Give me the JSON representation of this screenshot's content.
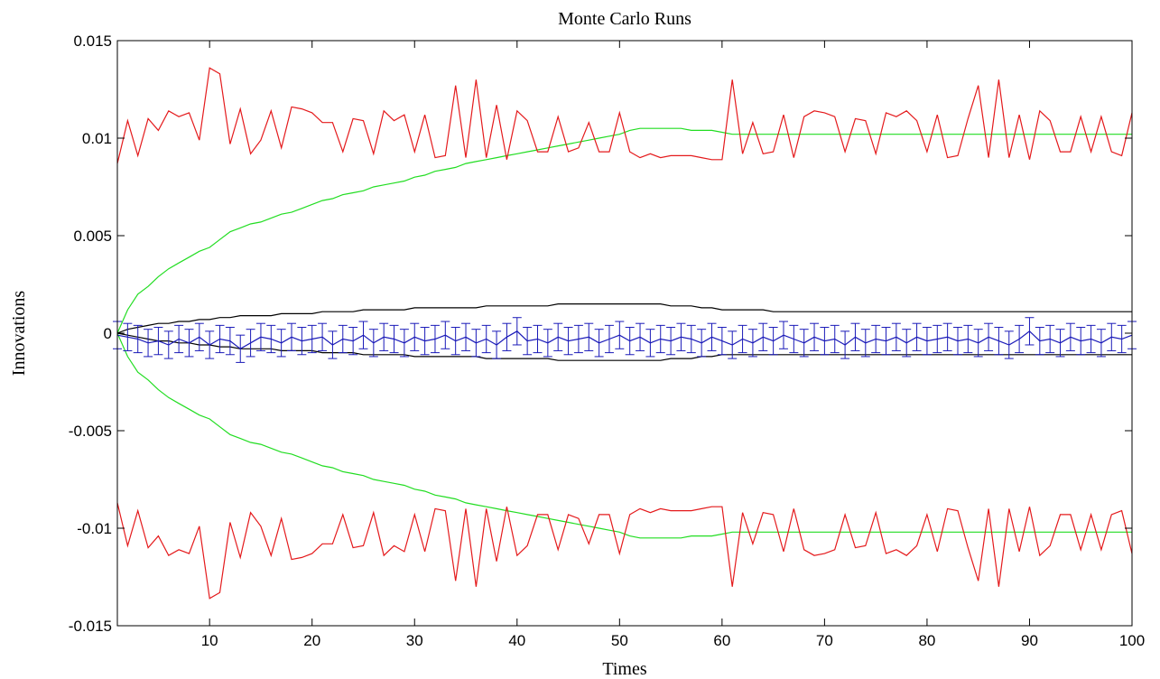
{
  "chart_data": {
    "type": "line",
    "title": "Monte Carlo Runs",
    "xlabel": "Times",
    "ylabel": "Innovations",
    "xlim": [
      1,
      100
    ],
    "ylim": [
      -0.015,
      0.015
    ],
    "xticks": [
      10,
      20,
      30,
      40,
      50,
      60,
      70,
      80,
      90,
      100
    ],
    "xtick_labels": [
      "10",
      "20",
      "30",
      "40",
      "50",
      "60",
      "70",
      "80",
      "90",
      "100"
    ],
    "yticks": [
      -0.015,
      -0.01,
      -0.005,
      0,
      0.005,
      0.01,
      0.015
    ],
    "ytick_labels": [
      "-0.015",
      "-0.01",
      "-0.005",
      "0",
      "0.005",
      "0.01",
      "0.015"
    ],
    "grid": false,
    "colors": {
      "red": "#e41a1c",
      "green": "#22dd22",
      "black": "#000000",
      "blue": "#1a1ab8"
    },
    "x": [
      1,
      2,
      3,
      4,
      5,
      6,
      7,
      8,
      9,
      10,
      11,
      12,
      13,
      14,
      15,
      16,
      17,
      18,
      19,
      20,
      21,
      22,
      23,
      24,
      25,
      26,
      27,
      28,
      29,
      30,
      31,
      32,
      33,
      34,
      35,
      36,
      37,
      38,
      39,
      40,
      41,
      42,
      43,
      44,
      45,
      46,
      47,
      48,
      49,
      50,
      51,
      52,
      53,
      54,
      55,
      56,
      57,
      58,
      59,
      60,
      61,
      62,
      63,
      64,
      65,
      66,
      67,
      68,
      69,
      70,
      71,
      72,
      73,
      74,
      75,
      76,
      77,
      78,
      79,
      80,
      81,
      82,
      83,
      84,
      85,
      86,
      87,
      88,
      89,
      90,
      91,
      92,
      93,
      94,
      95,
      96,
      97,
      98,
      99,
      100
    ],
    "red_upper": [
      0.0087,
      0.0109,
      0.0091,
      0.011,
      0.0104,
      0.0114,
      0.0111,
      0.0113,
      0.0099,
      0.0136,
      0.0133,
      0.0097,
      0.0115,
      0.0092,
      0.0099,
      0.0114,
      0.0095,
      0.0116,
      0.0115,
      0.0113,
      0.0108,
      0.0108,
      0.0093,
      0.011,
      0.0109,
      0.0092,
      0.0114,
      0.0109,
      0.0112,
      0.0093,
      0.0112,
      0.009,
      0.0091,
      0.0127,
      0.009,
      0.013,
      0.009,
      0.0117,
      0.0089,
      0.0114,
      0.0109,
      0.0093,
      0.0093,
      0.0111,
      0.0093,
      0.0095,
      0.0108,
      0.0093,
      0.0093,
      0.0113,
      0.0093,
      0.009,
      0.0092,
      0.009,
      0.0091,
      0.0091,
      0.0091,
      0.009,
      0.0089,
      0.0089,
      0.013,
      0.0092,
      0.0108,
      0.0092,
      0.0093,
      0.0112,
      0.009,
      0.0111,
      0.0114,
      0.0113,
      0.0111,
      0.0093,
      0.011,
      0.0109,
      0.0092,
      0.0113,
      0.0111,
      0.0114,
      0.0109,
      0.0093,
      0.0112,
      0.009,
      0.0091,
      0.011,
      0.0127,
      0.009,
      0.013,
      0.009,
      0.0112,
      0.0089,
      0.0114,
      0.0109,
      0.0093,
      0.0093,
      0.0111,
      0.0093,
      0.0111,
      0.0093,
      0.0091,
      0.0113
    ],
    "red_lower": [
      -0.0087,
      -0.0109,
      -0.0091,
      -0.011,
      -0.0104,
      -0.0114,
      -0.0111,
      -0.0113,
      -0.0099,
      -0.0136,
      -0.0133,
      -0.0097,
      -0.0115,
      -0.0092,
      -0.0099,
      -0.0114,
      -0.0095,
      -0.0116,
      -0.0115,
      -0.0113,
      -0.0108,
      -0.0108,
      -0.0093,
      -0.011,
      -0.0109,
      -0.0092,
      -0.0114,
      -0.0109,
      -0.0112,
      -0.0093,
      -0.0112,
      -0.009,
      -0.0091,
      -0.0127,
      -0.009,
      -0.013,
      -0.009,
      -0.0117,
      -0.0089,
      -0.0114,
      -0.0109,
      -0.0093,
      -0.0093,
      -0.0111,
      -0.0093,
      -0.0095,
      -0.0108,
      -0.0093,
      -0.0093,
      -0.0113,
      -0.0093,
      -0.009,
      -0.0092,
      -0.009,
      -0.0091,
      -0.0091,
      -0.0091,
      -0.009,
      -0.0089,
      -0.0089,
      -0.013,
      -0.0092,
      -0.0108,
      -0.0092,
      -0.0093,
      -0.0112,
      -0.009,
      -0.0111,
      -0.0114,
      -0.0113,
      -0.0111,
      -0.0093,
      -0.011,
      -0.0109,
      -0.0092,
      -0.0113,
      -0.0111,
      -0.0114,
      -0.0109,
      -0.0093,
      -0.0112,
      -0.009,
      -0.0091,
      -0.011,
      -0.0127,
      -0.009,
      -0.013,
      -0.009,
      -0.0112,
      -0.0089,
      -0.0114,
      -0.0109,
      -0.0093,
      -0.0093,
      -0.0111,
      -0.0093,
      -0.0111,
      -0.0093,
      -0.0091,
      -0.0113
    ],
    "green_upper": [
      0.0,
      0.0012,
      0.002,
      0.0024,
      0.0029,
      0.0033,
      0.0036,
      0.0039,
      0.0042,
      0.0044,
      0.0048,
      0.0052,
      0.0054,
      0.0056,
      0.0057,
      0.0059,
      0.0061,
      0.0062,
      0.0064,
      0.0066,
      0.0068,
      0.0069,
      0.0071,
      0.0072,
      0.0073,
      0.0075,
      0.0076,
      0.0077,
      0.0078,
      0.008,
      0.0081,
      0.0083,
      0.0084,
      0.0085,
      0.0087,
      0.0088,
      0.0089,
      0.009,
      0.0091,
      0.0092,
      0.0093,
      0.0094,
      0.0095,
      0.0096,
      0.0097,
      0.0098,
      0.0099,
      0.01,
      0.0101,
      0.0102,
      0.0104,
      0.0105,
      0.0105,
      0.0105,
      0.0105,
      0.0105,
      0.0104,
      0.0104,
      0.0104,
      0.0103,
      0.0102,
      0.0102,
      0.0102,
      0.0102,
      0.0102,
      0.0102,
      0.0102,
      0.0102,
      0.0102,
      0.0102,
      0.0102,
      0.0102,
      0.0102,
      0.0102,
      0.0102,
      0.0102,
      0.0102,
      0.0102,
      0.0102,
      0.0102,
      0.0102,
      0.0102,
      0.0102,
      0.0102,
      0.0102,
      0.0102,
      0.0102,
      0.0102,
      0.0102,
      0.0102,
      0.0102,
      0.0102,
      0.0102,
      0.0102,
      0.0102,
      0.0102,
      0.0102,
      0.0102,
      0.0102,
      0.0102
    ],
    "green_lower": [
      0.0,
      -0.0012,
      -0.002,
      -0.0024,
      -0.0029,
      -0.0033,
      -0.0036,
      -0.0039,
      -0.0042,
      -0.0044,
      -0.0048,
      -0.0052,
      -0.0054,
      -0.0056,
      -0.0057,
      -0.0059,
      -0.0061,
      -0.0062,
      -0.0064,
      -0.0066,
      -0.0068,
      -0.0069,
      -0.0071,
      -0.0072,
      -0.0073,
      -0.0075,
      -0.0076,
      -0.0077,
      -0.0078,
      -0.008,
      -0.0081,
      -0.0083,
      -0.0084,
      -0.0085,
      -0.0087,
      -0.0088,
      -0.0089,
      -0.009,
      -0.0091,
      -0.0092,
      -0.0093,
      -0.0094,
      -0.0095,
      -0.0096,
      -0.0097,
      -0.0098,
      -0.0099,
      -0.01,
      -0.0101,
      -0.0102,
      -0.0104,
      -0.0105,
      -0.0105,
      -0.0105,
      -0.0105,
      -0.0105,
      -0.0104,
      -0.0104,
      -0.0104,
      -0.0103,
      -0.0102,
      -0.0102,
      -0.0102,
      -0.0102,
      -0.0102,
      -0.0102,
      -0.0102,
      -0.0102,
      -0.0102,
      -0.0102,
      -0.0102,
      -0.0102,
      -0.0102,
      -0.0102,
      -0.0102,
      -0.0102,
      -0.0102,
      -0.0102,
      -0.0102,
      -0.0102,
      -0.0102,
      -0.0102,
      -0.0102,
      -0.0102,
      -0.0102,
      -0.0102,
      -0.0102,
      -0.0102,
      -0.0102,
      -0.0102,
      -0.0102,
      -0.0102,
      -0.0102,
      -0.0102,
      -0.0102,
      -0.0102,
      -0.0102,
      -0.0102,
      -0.0102,
      -0.0102
    ],
    "black_upper": [
      0.0,
      0.0002,
      0.0003,
      0.0004,
      0.0005,
      0.0005,
      0.0006,
      0.0006,
      0.0007,
      0.0007,
      0.0008,
      0.0008,
      0.0009,
      0.0009,
      0.0009,
      0.0009,
      0.001,
      0.001,
      0.001,
      0.001,
      0.0011,
      0.0011,
      0.0011,
      0.0011,
      0.0012,
      0.0012,
      0.0012,
      0.0012,
      0.0012,
      0.0013,
      0.0013,
      0.0013,
      0.0013,
      0.0013,
      0.0013,
      0.0013,
      0.0014,
      0.0014,
      0.0014,
      0.0014,
      0.0014,
      0.0014,
      0.0014,
      0.0015,
      0.0015,
      0.0015,
      0.0015,
      0.0015,
      0.0015,
      0.0015,
      0.0015,
      0.0015,
      0.0015,
      0.0015,
      0.0014,
      0.0014,
      0.0014,
      0.0013,
      0.0013,
      0.0012,
      0.0012,
      0.0012,
      0.0012,
      0.0012,
      0.0011,
      0.0011,
      0.0011,
      0.0011,
      0.0011,
      0.0011,
      0.0011,
      0.0011,
      0.0011,
      0.0011,
      0.0011,
      0.0011,
      0.0011,
      0.0011,
      0.0011,
      0.0011,
      0.0011,
      0.0011,
      0.0011,
      0.0011,
      0.0011,
      0.0011,
      0.0011,
      0.0011,
      0.0011,
      0.0011,
      0.0011,
      0.0011,
      0.0011,
      0.0011,
      0.0011,
      0.0011,
      0.0011,
      0.0011,
      0.0011,
      0.0011
    ],
    "black_lower": [
      0.0,
      -0.0001,
      -0.0002,
      -0.0003,
      -0.0004,
      -0.0004,
      -0.0005,
      -0.0005,
      -0.0006,
      -0.0006,
      -0.0007,
      -0.0007,
      -0.0008,
      -0.0008,
      -0.0008,
      -0.0008,
      -0.0009,
      -0.0009,
      -0.0009,
      -0.0009,
      -0.001,
      -0.001,
      -0.001,
      -0.001,
      -0.0011,
      -0.0011,
      -0.0011,
      -0.0011,
      -0.0011,
      -0.0012,
      -0.0012,
      -0.0012,
      -0.0012,
      -0.0012,
      -0.0012,
      -0.0012,
      -0.0013,
      -0.0013,
      -0.0013,
      -0.0013,
      -0.0013,
      -0.0013,
      -0.0013,
      -0.0014,
      -0.0014,
      -0.0014,
      -0.0014,
      -0.0014,
      -0.0014,
      -0.0014,
      -0.0014,
      -0.0014,
      -0.0014,
      -0.0014,
      -0.0013,
      -0.0013,
      -0.0013,
      -0.0012,
      -0.0012,
      -0.0011,
      -0.0011,
      -0.0011,
      -0.0011,
      -0.0011,
      -0.0011,
      -0.0011,
      -0.0011,
      -0.0011,
      -0.0011,
      -0.0011,
      -0.0011,
      -0.0011,
      -0.0011,
      -0.0011,
      -0.0011,
      -0.0011,
      -0.0011,
      -0.0011,
      -0.0011,
      -0.0011,
      -0.0011,
      -0.0011,
      -0.0011,
      -0.0011,
      -0.0011,
      -0.0011,
      -0.0011,
      -0.0011,
      -0.0011,
      -0.0011,
      -0.0011,
      -0.0011,
      -0.0011,
      -0.0011,
      -0.0011,
      -0.0011,
      -0.0011,
      -0.0011,
      -0.0011,
      -0.0011
    ],
    "blue_mean": [
      -0.0001,
      -0.0002,
      -0.0003,
      -0.0005,
      -0.0004,
      -0.0006,
      -0.0003,
      -0.0005,
      -0.0002,
      -0.0006,
      -0.0003,
      -0.0004,
      -0.0008,
      -0.0005,
      -0.0002,
      -0.0003,
      -0.0005,
      -0.0002,
      -0.0004,
      -0.0003,
      -0.0002,
      -0.0006,
      -0.0003,
      -0.0004,
      -0.0001,
      -0.0005,
      -0.0002,
      -0.0003,
      -0.0005,
      -0.0002,
      -0.0004,
      -0.0003,
      -0.0001,
      -0.0004,
      -0.0002,
      -0.0005,
      -0.0003,
      -0.0006,
      -0.0002,
      0.0001,
      -0.0004,
      -0.0003,
      -0.0005,
      -0.0002,
      -0.0004,
      -0.0003,
      -0.0002,
      -0.0005,
      -0.0003,
      -0.0001,
      -0.0004,
      -0.0002,
      -0.0005,
      -0.0003,
      -0.0004,
      -0.0002,
      -0.0003,
      -0.0005,
      -0.0002,
      -0.0004,
      -0.0006,
      -0.0003,
      -0.0005,
      -0.0002,
      -0.0004,
      -0.0001,
      -0.0003,
      -0.0005,
      -0.0002,
      -0.0004,
      -0.0003,
      -0.0006,
      -0.0002,
      -0.0005,
      -0.0003,
      -0.0004,
      -0.0002,
      -0.0005,
      -0.0002,
      -0.0004,
      -0.0003,
      -0.0002,
      -0.0004,
      -0.0003,
      -0.0005,
      -0.0002,
      -0.0004,
      -0.0006,
      -0.0003,
      0.0001,
      -0.0004,
      -0.0003,
      -0.0005,
      -0.0002,
      -0.0004,
      -0.0003,
      -0.0005,
      -0.0002,
      -0.0003,
      -0.0001
    ],
    "blue_err": 0.0007
  }
}
